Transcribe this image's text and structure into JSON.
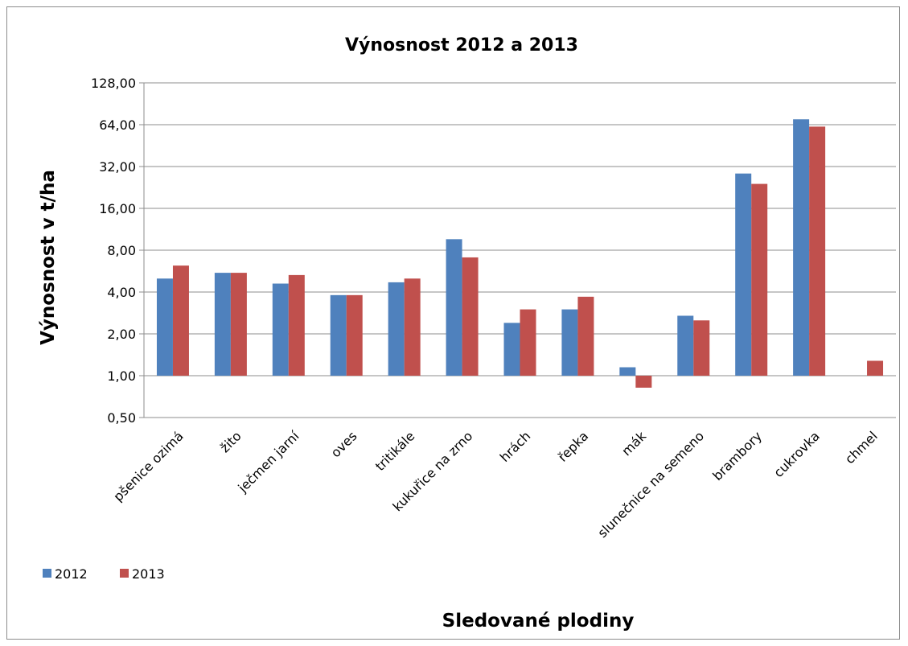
{
  "chart_data": {
    "type": "bar",
    "title": "Výnosnost 2012 a 2013",
    "xlabel": "Sledované plodiny",
    "ylabel": "Výnosnost v t/ha",
    "yscale": "log2",
    "ylim": [
      0.5,
      128
    ],
    "yticks": [
      "0,50",
      "1,00",
      "2,00",
      "4,00",
      "8,00",
      "16,00",
      "32,00",
      "64,00",
      "128,00"
    ],
    "ytick_values": [
      0.5,
      1,
      2,
      4,
      8,
      16,
      32,
      64,
      128
    ],
    "grid": true,
    "legend_position": "bottom-left",
    "categories": [
      "pšenice ozimá",
      "žito",
      "ječmen jarní",
      "oves",
      "tritikále",
      "kukuřice na zrno",
      "hrách",
      "řepka",
      "mák",
      "slunečnice na semeno",
      "brambory",
      "cukrovka",
      "chmel"
    ],
    "series": [
      {
        "name": "2012",
        "color": "#4f81bd",
        "values": [
          5.0,
          5.5,
          4.6,
          3.8,
          4.7,
          9.6,
          2.4,
          3.0,
          1.15,
          2.7,
          28.5,
          70.0,
          null
        ]
      },
      {
        "name": "2013",
        "color": "#c0504d",
        "values": [
          6.2,
          5.5,
          5.3,
          3.8,
          5.0,
          7.1,
          3.0,
          3.7,
          0.82,
          2.5,
          24.0,
          62.0,
          1.28
        ]
      }
    ]
  }
}
